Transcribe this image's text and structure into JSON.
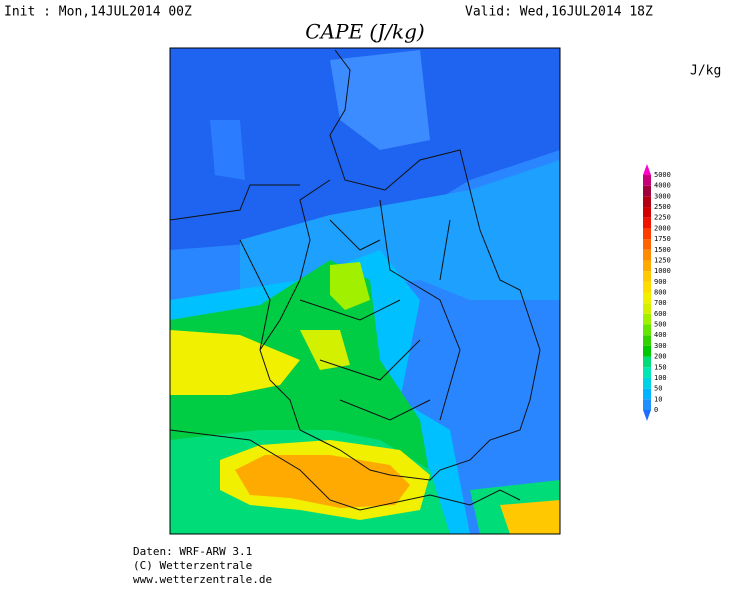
{
  "header": {
    "init": "Init : Mon,14JUL2014 00Z",
    "valid": "Valid: Wed,16JUL2014 18Z"
  },
  "title": "CAPE (J/kg)",
  "unit": "J/kg",
  "colorbar": {
    "levels": [
      0,
      10,
      50,
      100,
      150,
      200,
      300,
      400,
      500,
      600,
      700,
      800,
      900,
      1000,
      1250,
      1500,
      1750,
      2000,
      2250,
      2500,
      3000,
      4000,
      5000
    ],
    "colors": [
      "#1e6eff",
      "#1e90ff",
      "#00b4ff",
      "#00d2e6",
      "#00e6b4",
      "#00dc78",
      "#00c800",
      "#32d200",
      "#64e600",
      "#a0f000",
      "#d2f000",
      "#f0f000",
      "#ffdc00",
      "#ffc800",
      "#ffaa00",
      "#ff8c00",
      "#ff6400",
      "#ff3c00",
      "#f01400",
      "#d20000",
      "#b40014",
      "#a0003c",
      "#c80078",
      "#ff00c8"
    ]
  },
  "footer": [
    "Daten: WRF-ARW 3.1",
    "(C) Wetterzentrale",
    "www.wetterzentrale.de"
  ]
}
